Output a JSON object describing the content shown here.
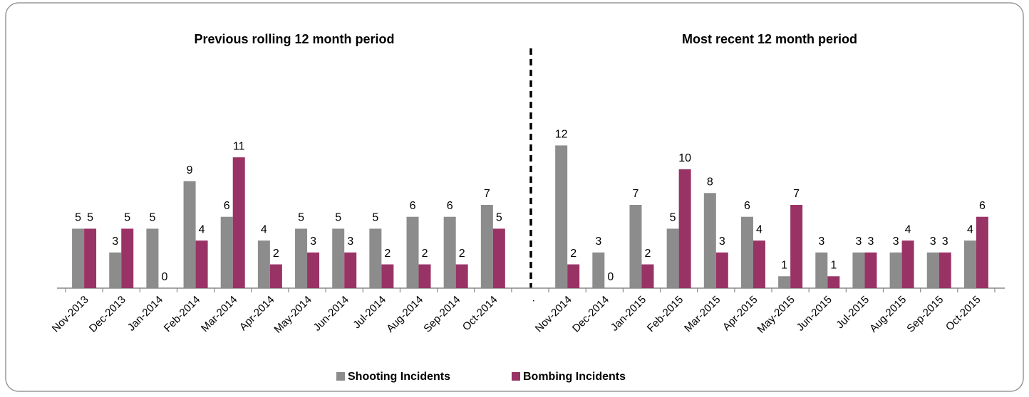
{
  "chart_data": {
    "type": "bar",
    "annotations": [
      "Previous rolling 12 month period",
      "Most recent 12 month period"
    ],
    "categories": [
      "Nov-2013",
      "Dec-2013",
      "Jan-2014",
      "Feb-2014",
      "Mar-2014",
      "Apr-2014",
      "May-2014",
      "Jun-2014",
      "Jul-2014",
      "Aug-2014",
      "Sep-2014",
      "Oct-2014",
      ".",
      "Nov-2014",
      "Dec-2014",
      "Jan-2015",
      "Feb-2015",
      "Mar-2015",
      "Apr-2015",
      "May-2015",
      "Jun-2015",
      "Jul-2015",
      "Aug-2015",
      "Sep-2015",
      "Oct-2015"
    ],
    "series": [
      {
        "name": "Shooting Incidents",
        "color": "#8c8c8c",
        "values": [
          5,
          3,
          5,
          9,
          6,
          4,
          5,
          5,
          5,
          6,
          6,
          7,
          null,
          12,
          3,
          7,
          5,
          8,
          6,
          1,
          3,
          3,
          3,
          3,
          4
        ]
      },
      {
        "name": "Bombing Incidents",
        "color": "#993366",
        "values": [
          5,
          5,
          0,
          4,
          11,
          2,
          3,
          3,
          2,
          2,
          2,
          5,
          null,
          2,
          0,
          2,
          10,
          3,
          4,
          7,
          1,
          3,
          4,
          3,
          6
        ]
      }
    ],
    "ylim": [
      0,
      14
    ],
    "legend": "bottom"
  }
}
